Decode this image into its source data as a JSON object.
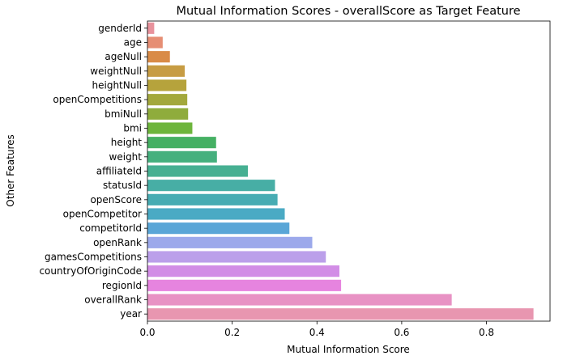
{
  "chart_data": {
    "type": "bar",
    "orientation": "horizontal",
    "title": "Mutual Information Scores - overallScore as Target Feature",
    "xlabel": "Mutual Information Score",
    "ylabel": "Other Features",
    "xlim": [
      0,
      0.95
    ],
    "xticks": [
      0.0,
      0.2,
      0.4,
      0.6,
      0.8
    ],
    "xtick_labels": [
      "0.0",
      "0.2",
      "0.4",
      "0.6",
      "0.8"
    ],
    "grid": false,
    "categories": [
      "genderId",
      "age",
      "ageNull",
      "weightNull",
      "heightNull",
      "openCompetitions",
      "bmiNull",
      "bmi",
      "height",
      "weight",
      "affiliateId",
      "statusId",
      "openScore",
      "openCompetitor",
      "competitorId",
      "openRank",
      "gamesCompetitions",
      "countryOfOriginCode",
      "regionId",
      "overallRank",
      "year"
    ],
    "values": [
      0.016,
      0.036,
      0.053,
      0.088,
      0.092,
      0.094,
      0.096,
      0.106,
      0.162,
      0.164,
      0.237,
      0.301,
      0.307,
      0.324,
      0.335,
      0.389,
      0.421,
      0.453,
      0.457,
      0.718,
      0.911
    ],
    "colors": [
      "#e8929c",
      "#e68e74",
      "#d98b47",
      "#c79c43",
      "#b6a33c",
      "#a3a83c",
      "#8fac3c",
      "#6db53c",
      "#45b063",
      "#45b07e",
      "#46b092",
      "#47aea5",
      "#47acb3",
      "#4aaac4",
      "#5aa6d7",
      "#9ca9eb",
      "#bb9fea",
      "#d28de6",
      "#e684df",
      "#e892c4",
      "#e896b0"
    ]
  }
}
